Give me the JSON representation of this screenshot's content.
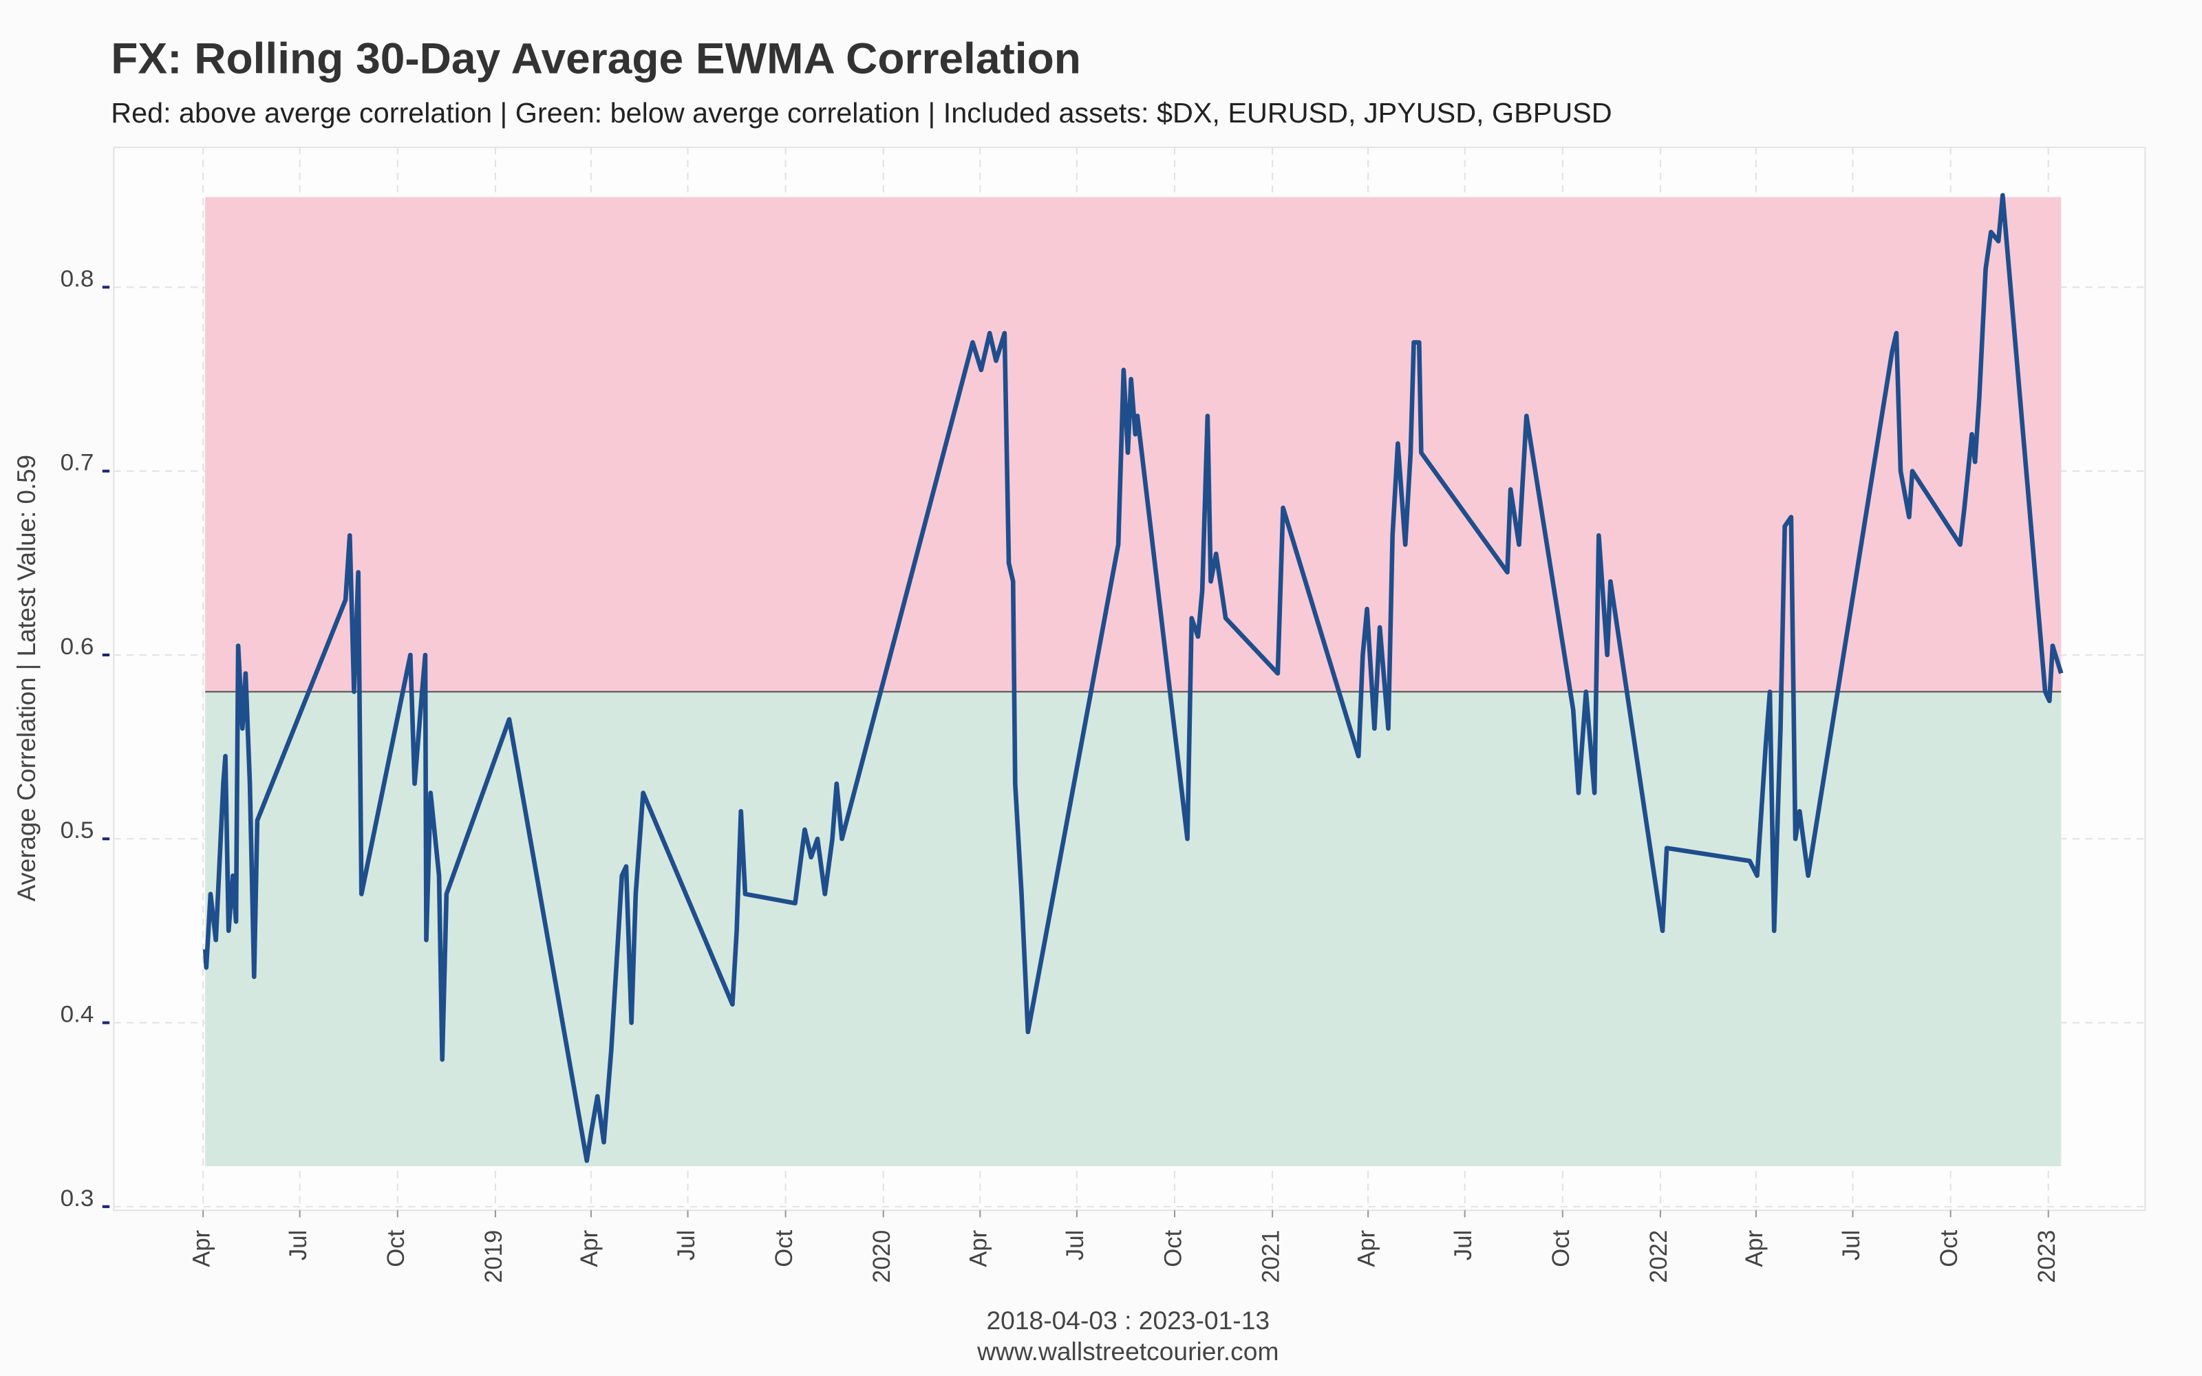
{
  "chart_data": {
    "type": "line",
    "title": "FX: Rolling 30-Day Average EWMA Correlation",
    "subtitle": "Red: above averge correlation | Green: below averge correlation | Included assets: $DX, EURUSD, JPYUSD, GBPUSD",
    "y_label": "Average Correlation | Latest Value: 0.59",
    "x_label": "2018-04-03 : 2023-01-13",
    "caption": "www.wallstreetcourier.com",
    "xlim": [
      "2018-01-07",
      "2023-04-02"
    ],
    "ylim": [
      0.298,
      0.876
    ],
    "yticks": [
      0.3,
      0.4,
      0.5,
      0.6,
      0.7,
      0.8
    ],
    "xticks": [
      {
        "value": "2018-04-01",
        "label": "Apr"
      },
      {
        "value": "2018-07-01",
        "label": "Jul"
      },
      {
        "value": "2018-10-01",
        "label": "Oct"
      },
      {
        "value": "2019-01-01",
        "label": "2019"
      },
      {
        "value": "2019-04-01",
        "label": "Apr"
      },
      {
        "value": "2019-07-01",
        "label": "Jul"
      },
      {
        "value": "2019-10-01",
        "label": "Oct"
      },
      {
        "value": "2020-01-01",
        "label": "2020"
      },
      {
        "value": "2020-04-01",
        "label": "Apr"
      },
      {
        "value": "2020-07-01",
        "label": "Jul"
      },
      {
        "value": "2020-10-01",
        "label": "Oct"
      },
      {
        "value": "2021-01-01",
        "label": "2021"
      },
      {
        "value": "2021-04-01",
        "label": "Apr"
      },
      {
        "value": "2021-07-01",
        "label": "Jul"
      },
      {
        "value": "2021-10-01",
        "label": "Oct"
      },
      {
        "value": "2022-01-01",
        "label": "2022"
      },
      {
        "value": "2022-04-01",
        "label": "Apr"
      },
      {
        "value": "2022-07-01",
        "label": "Jul"
      },
      {
        "value": "2022-10-01",
        "label": "Oct"
      },
      {
        "value": "2023-01-01",
        "label": "2023"
      }
    ],
    "grid": true,
    "reference_line": {
      "value": 0.58,
      "color": "#555555"
    },
    "bands": [
      {
        "from": 0.58,
        "to": 0.849,
        "color": "#f8cad6"
      },
      {
        "from": 0.322,
        "to": 0.58,
        "color": "#d5e8df"
      }
    ],
    "x": [
      "2018-04-03",
      "2018-04-04",
      "2018-04-08",
      "2018-04-13",
      "2018-04-20",
      "2018-04-22",
      "2018-04-25",
      "2018-04-29",
      "2018-05-02",
      "2018-05-04",
      "2018-05-08",
      "2018-05-11",
      "2018-05-15",
      "2018-05-19",
      "2018-05-22",
      "2018-08-13",
      "2018-08-17",
      "2018-08-21",
      "2018-08-25",
      "2018-08-28",
      "2018-10-13",
      "2018-10-17",
      "2018-10-24",
      "2018-10-27",
      "2018-10-28",
      "2018-11-01",
      "2018-11-09",
      "2018-11-12",
      "2018-11-16",
      "2019-01-14",
      "2019-03-28",
      "2019-04-01",
      "2019-04-07",
      "2019-04-13",
      "2019-04-20",
      "2019-04-30",
      "2019-05-04",
      "2019-05-09",
      "2019-05-13",
      "2019-05-20",
      "2019-08-12",
      "2019-08-16",
      "2019-08-20",
      "2019-08-24",
      "2019-10-10",
      "2019-10-19",
      "2019-10-25",
      "2019-10-31",
      "2019-11-07",
      "2019-11-14",
      "2019-11-18",
      "2019-11-23",
      "2020-03-25",
      "2020-04-02",
      "2020-04-10",
      "2020-04-16",
      "2020-04-24",
      "2020-04-28",
      "2020-05-02",
      "2020-05-04",
      "2020-05-10",
      "2020-05-16",
      "2020-08-09",
      "2020-08-14",
      "2020-08-18",
      "2020-08-21",
      "2020-08-25",
      "2020-08-27",
      "2020-10-13",
      "2020-10-17",
      "2020-10-23",
      "2020-10-27",
      "2020-11-01",
      "2020-11-04",
      "2020-11-09",
      "2020-11-18",
      "2021-01-06",
      "2021-01-11",
      "2021-03-23",
      "2021-03-27",
      "2021-03-31",
      "2021-04-07",
      "2021-04-12",
      "2021-04-20",
      "2021-04-24",
      "2021-04-29",
      "2021-05-06",
      "2021-05-11",
      "2021-05-14",
      "2021-05-19",
      "2021-05-21",
      "2021-08-10",
      "2021-08-13",
      "2021-08-21",
      "2021-08-28",
      "2021-10-11",
      "2021-10-16",
      "2021-10-23",
      "2021-10-31",
      "2021-11-04",
      "2021-11-12",
      "2021-11-15",
      "2022-01-03",
      "2022-01-07",
      "2022-03-26",
      "2022-04-02",
      "2022-04-10",
      "2022-04-14",
      "2022-04-18",
      "2022-04-24",
      "2022-04-28",
      "2022-05-04",
      "2022-05-08",
      "2022-05-12",
      "2022-05-20",
      "2022-08-07",
      "2022-08-11",
      "2022-08-15",
      "2022-08-23",
      "2022-08-26",
      "2022-10-10",
      "2022-10-14",
      "2022-10-21",
      "2022-10-24",
      "2022-10-28",
      "2022-11-03",
      "2022-11-08",
      "2022-11-15",
      "2022-11-19",
      "2022-12-29",
      "2023-01-02",
      "2023-01-05",
      "2023-01-13"
    ],
    "series": [
      {
        "name": "Average Correlation",
        "color": "#1f4e8c",
        "values": [
          0.44,
          0.43,
          0.47,
          0.445,
          0.53,
          0.545,
          0.45,
          0.48,
          0.455,
          0.605,
          0.56,
          0.59,
          0.53,
          0.425,
          0.51,
          0.63,
          0.665,
          0.58,
          0.645,
          0.47,
          0.6,
          0.53,
          0.58,
          0.6,
          0.445,
          0.525,
          0.48,
          0.38,
          0.47,
          0.565,
          0.325,
          0.34,
          0.36,
          0.335,
          0.385,
          0.48,
          0.485,
          0.4,
          0.47,
          0.525,
          0.41,
          0.45,
          0.515,
          0.47,
          0.465,
          0.505,
          0.49,
          0.5,
          0.47,
          0.5,
          0.53,
          0.5,
          0.77,
          0.755,
          0.775,
          0.76,
          0.775,
          0.65,
          0.64,
          0.53,
          0.47,
          0.395,
          0.66,
          0.755,
          0.71,
          0.75,
          0.72,
          0.73,
          0.5,
          0.62,
          0.61,
          0.635,
          0.73,
          0.64,
          0.655,
          0.62,
          0.59,
          0.68,
          0.545,
          0.6,
          0.625,
          0.56,
          0.615,
          0.56,
          0.665,
          0.715,
          0.66,
          0.71,
          0.77,
          0.77,
          0.71,
          0.645,
          0.69,
          0.66,
          0.73,
          0.57,
          0.525,
          0.58,
          0.525,
          0.665,
          0.6,
          0.64,
          0.45,
          0.495,
          0.488,
          0.48,
          0.55,
          0.58,
          0.45,
          0.56,
          0.67,
          0.675,
          0.5,
          0.515,
          0.48,
          0.765,
          0.775,
          0.7,
          0.675,
          0.7,
          0.66,
          0.68,
          0.72,
          0.705,
          0.74,
          0.81,
          0.83,
          0.825,
          0.85,
          0.58,
          0.575,
          0.605,
          0.59
        ]
      }
    ]
  }
}
